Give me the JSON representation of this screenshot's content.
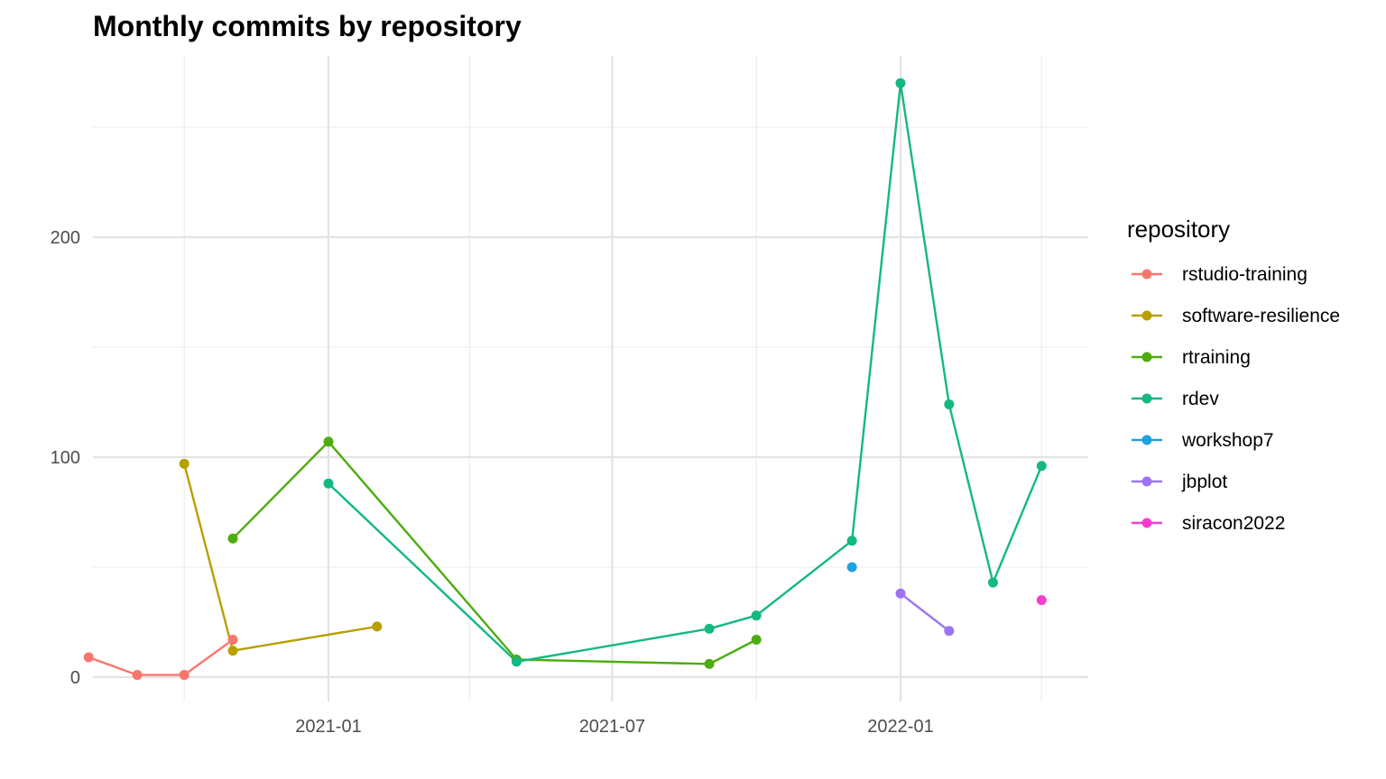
{
  "chart_data": {
    "type": "line",
    "title": "Monthly commits by repository",
    "xlabel": "",
    "ylabel": "",
    "x_axis": {
      "kind": "date",
      "range": [
        "2020-07-15",
        "2022-04-15"
      ],
      "major_ticks": [
        {
          "value": "2021-01-01",
          "label": "2021-01"
        },
        {
          "value": "2021-07-01",
          "label": "2021-07"
        },
        {
          "value": "2022-01-01",
          "label": "2022-01"
        }
      ],
      "minor_ticks": [
        "2020-10-01",
        "2021-04-01",
        "2021-10-01",
        "2022-04-01"
      ]
    },
    "y_axis": {
      "range": [
        -11,
        270
      ],
      "major_ticks": [
        {
          "value": 0,
          "label": "0"
        },
        {
          "value": 100,
          "label": "100"
        },
        {
          "value": 200,
          "label": "200"
        }
      ],
      "minor_ticks": [
        50,
        150,
        250
      ]
    },
    "grid": true,
    "legend": {
      "title": "repository",
      "position": "right"
    },
    "series": [
      {
        "name": "rstudio-training",
        "color": "#F8766D",
        "points": [
          {
            "x": "2020-08-01",
            "y": 9
          },
          {
            "x": "2020-09-01",
            "y": 1
          },
          {
            "x": "2020-10-01",
            "y": 1
          },
          {
            "x": "2020-11-01",
            "y": 17
          }
        ]
      },
      {
        "name": "software-resilience",
        "color": "#B79F00",
        "points": [
          {
            "x": "2020-10-01",
            "y": 97
          },
          {
            "x": "2020-11-01",
            "y": 12
          },
          {
            "x": "2021-02-01",
            "y": 23
          }
        ]
      },
      {
        "name": "rtraining",
        "color": "#4DAC0E",
        "points": [
          {
            "x": "2020-11-01",
            "y": 63
          },
          {
            "x": "2021-01-01",
            "y": 107
          },
          {
            "x": "2021-05-01",
            "y": 8
          },
          {
            "x": "2021-09-01",
            "y": 6
          },
          {
            "x": "2021-10-01",
            "y": 17
          }
        ]
      },
      {
        "name": "rdev",
        "color": "#14B883",
        "points": [
          {
            "x": "2021-01-01",
            "y": 88
          },
          {
            "x": "2021-05-01",
            "y": 7
          },
          {
            "x": "2021-09-01",
            "y": 22
          },
          {
            "x": "2021-10-01",
            "y": 28
          },
          {
            "x": "2021-12-01",
            "y": 62
          },
          {
            "x": "2022-01-01",
            "y": 270
          },
          {
            "x": "2022-02-01",
            "y": 124
          },
          {
            "x": "2022-03-01",
            "y": 43
          },
          {
            "x": "2022-04-01",
            "y": 96
          }
        ]
      },
      {
        "name": "workshop7",
        "color": "#1FA1E1",
        "points": [
          {
            "x": "2021-12-01",
            "y": 50
          }
        ]
      },
      {
        "name": "jbplot",
        "color": "#9C74F3",
        "points": [
          {
            "x": "2022-01-01",
            "y": 38
          },
          {
            "x": "2022-02-01",
            "y": 21
          }
        ]
      },
      {
        "name": "siracon2022",
        "color": "#F23FCD",
        "points": [
          {
            "x": "2022-04-01",
            "y": 35
          }
        ]
      }
    ]
  }
}
